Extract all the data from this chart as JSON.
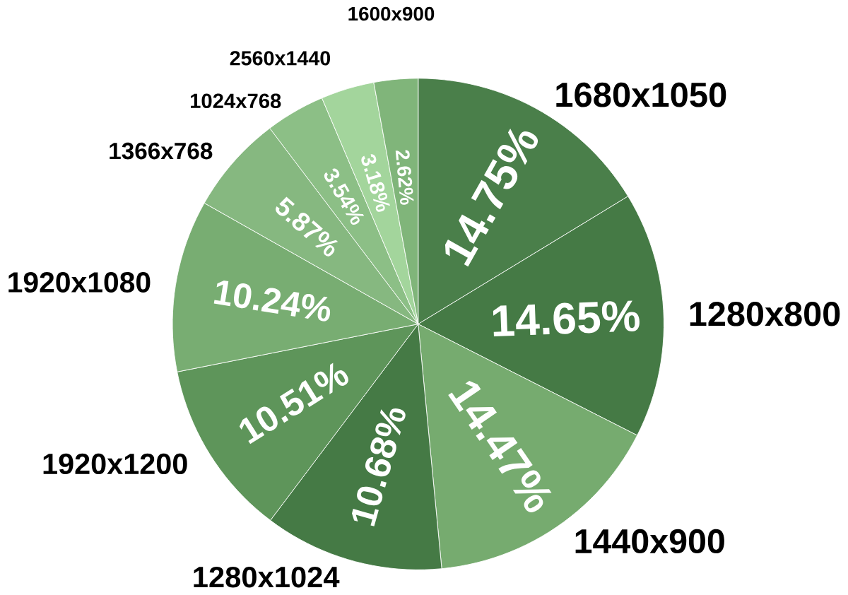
{
  "chart_data": {
    "type": "pie",
    "categories": [
      "1680x1050",
      "1280x800",
      "1440x900",
      "1280x1024",
      "1920x1200",
      "1920x1080",
      "1366x768",
      "1024x768",
      "2560x1440",
      "1600x900"
    ],
    "values": [
      14.75,
      14.65,
      14.47,
      10.68,
      10.51,
      10.24,
      5.87,
      3.54,
      3.18,
      2.62
    ],
    "value_labels": [
      "14.75%",
      "14.65%",
      "14.47%",
      "10.68%",
      "10.51%",
      "10.24%",
      "5.87%",
      "3.54%",
      "3.18%",
      "2.62%"
    ],
    "colors": [
      "#4a7f4a",
      "#457a45",
      "#76ab6f",
      "#457a45",
      "#5e955a",
      "#78ad72",
      "#86b880",
      "#8cbf86",
      "#a3d59c",
      "#80b57a"
    ]
  }
}
